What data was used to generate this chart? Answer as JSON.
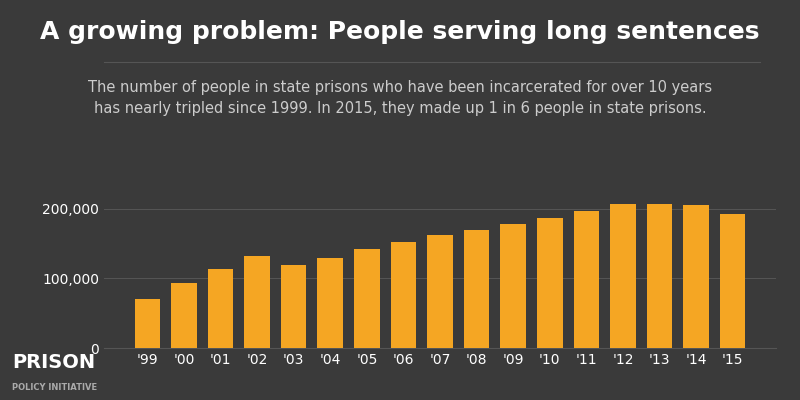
{
  "title": "A growing problem: People serving long sentences",
  "subtitle": "The number of people in state prisons who have been incarcerated for over 10 years\nhas nearly tripled since 1999. In 2015, they made up 1 in 6 people in state prisons.",
  "years": [
    "'99",
    "'00",
    "'01",
    "'02",
    "'03",
    "'04",
    "'05",
    "'06",
    "'07",
    "'08",
    "'09",
    "'10",
    "'11",
    "'12",
    "'13",
    "'14",
    "'15"
  ],
  "values": [
    70000,
    93000,
    113000,
    132000,
    120000,
    130000,
    143000,
    153000,
    162000,
    170000,
    178000,
    187000,
    197000,
    207000,
    207000,
    205000,
    192000
  ],
  "bar_color": "#F5A623",
  "background_color": "#3a3a3a",
  "text_color": "#ffffff",
  "subtitle_color": "#cccccc",
  "grid_color": "#555555",
  "logo_color": "#aaaaaa",
  "ylim": [
    0,
    230000
  ],
  "yticks": [
    0,
    100000,
    200000
  ],
  "ytick_labels": [
    "0",
    "100,000",
    "200,000"
  ],
  "title_fontsize": 18,
  "subtitle_fontsize": 10.5,
  "tick_fontsize": 10,
  "logo_prison": "PRISON",
  "logo_sub": "POLICY INITIATIVE"
}
